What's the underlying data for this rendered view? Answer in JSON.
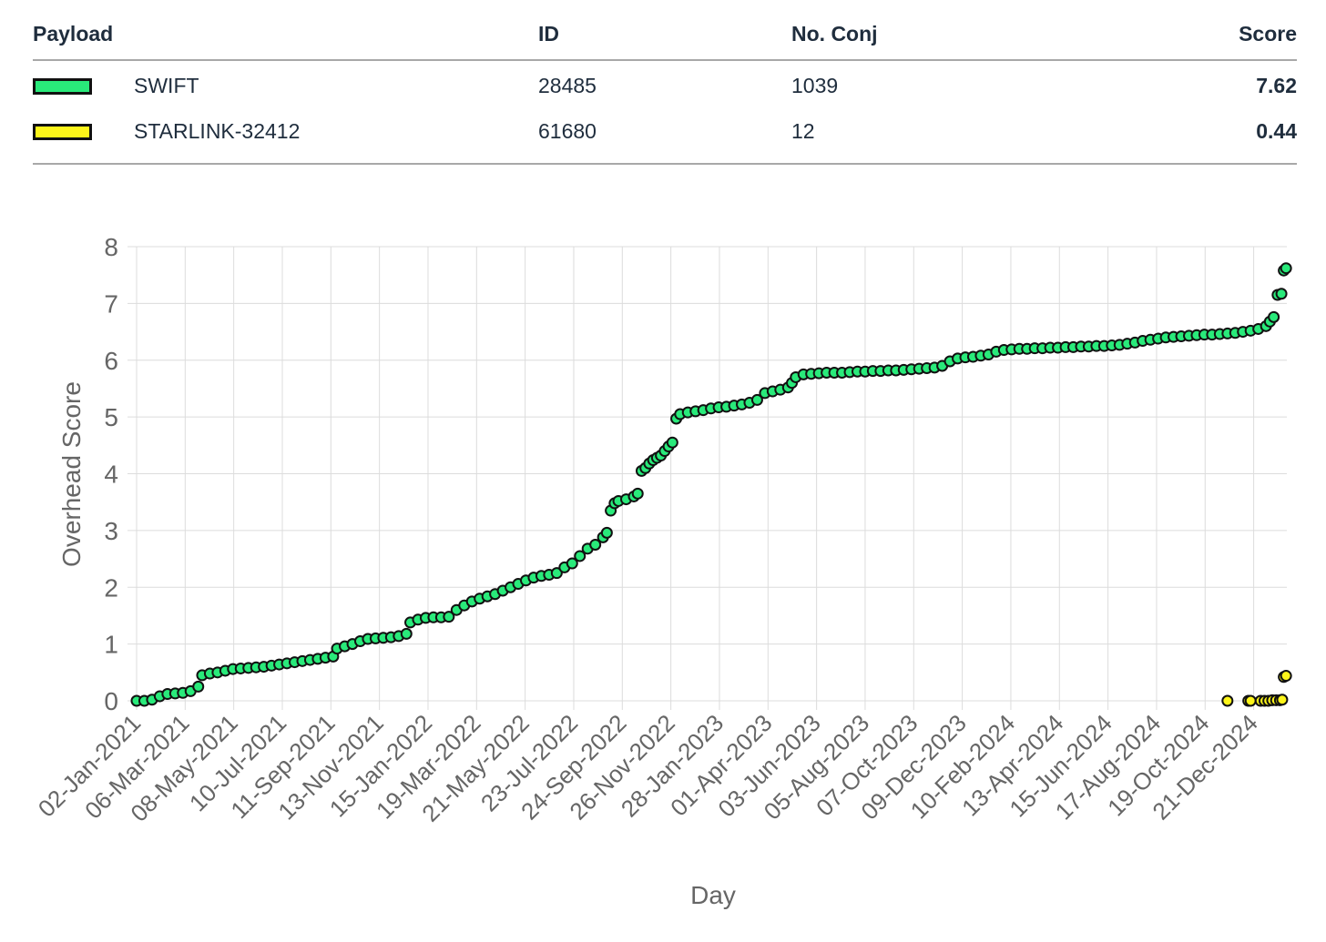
{
  "table": {
    "headers": [
      "Payload",
      "ID",
      "No. Conj",
      "Score"
    ],
    "rows": [
      {
        "name": "SWIFT",
        "id": "28485",
        "conj": "1039",
        "score": "7.62",
        "color": "#29ea7a"
      },
      {
        "name": "STARLINK-32412",
        "id": "61680",
        "conj": "12",
        "score": "0.44",
        "color": "#fdf51a"
      }
    ]
  },
  "chart_data": {
    "type": "scatter",
    "xlabel": "Day",
    "ylabel": "Overhead Score",
    "ylim": [
      0,
      8
    ],
    "yticks": [
      0,
      1,
      2,
      3,
      4,
      5,
      6,
      7,
      8
    ],
    "xlim": [
      "2021-01-02",
      "2025-02-02"
    ],
    "xticks": [
      "02-Jan-2021",
      "06-Mar-2021",
      "08-May-2021",
      "10-Jul-2021",
      "11-Sep-2021",
      "13-Nov-2021",
      "15-Jan-2022",
      "19-Mar-2022",
      "21-May-2022",
      "23-Jul-2022",
      "24-Sep-2022",
      "26-Nov-2022",
      "28-Jan-2023",
      "01-Apr-2023",
      "03-Jun-2023",
      "05-Aug-2023",
      "07-Oct-2023",
      "09-Dec-2023",
      "10-Feb-2024",
      "13-Apr-2024",
      "15-Jun-2024",
      "17-Aug-2024",
      "19-Oct-2024",
      "21-Dec-2024"
    ],
    "grid": true,
    "series": [
      {
        "name": "SWIFT",
        "color": "#29ea7a",
        "points": [
          [
            "2021-01-02",
            0.0
          ],
          [
            "2021-01-12",
            0.0
          ],
          [
            "2021-01-22",
            0.02
          ],
          [
            "2021-02-01",
            0.08
          ],
          [
            "2021-02-11",
            0.12
          ],
          [
            "2021-02-21",
            0.13
          ],
          [
            "2021-03-03",
            0.14
          ],
          [
            "2021-03-13",
            0.17
          ],
          [
            "2021-03-23",
            0.25
          ],
          [
            "2021-03-28",
            0.45
          ],
          [
            "2021-04-07",
            0.48
          ],
          [
            "2021-04-17",
            0.5
          ],
          [
            "2021-04-27",
            0.53
          ],
          [
            "2021-05-07",
            0.56
          ],
          [
            "2021-05-17",
            0.57
          ],
          [
            "2021-05-27",
            0.58
          ],
          [
            "2021-06-06",
            0.59
          ],
          [
            "2021-06-16",
            0.6
          ],
          [
            "2021-06-26",
            0.62
          ],
          [
            "2021-07-06",
            0.64
          ],
          [
            "2021-07-16",
            0.66
          ],
          [
            "2021-07-26",
            0.68
          ],
          [
            "2021-08-05",
            0.7
          ],
          [
            "2021-08-15",
            0.72
          ],
          [
            "2021-08-25",
            0.74
          ],
          [
            "2021-09-04",
            0.76
          ],
          [
            "2021-09-14",
            0.78
          ],
          [
            "2021-09-19",
            0.92
          ],
          [
            "2021-09-29",
            0.96
          ],
          [
            "2021-10-09",
            1.0
          ],
          [
            "2021-10-19",
            1.05
          ],
          [
            "2021-10-29",
            1.09
          ],
          [
            "2021-11-08",
            1.1
          ],
          [
            "2021-11-18",
            1.11
          ],
          [
            "2021-11-28",
            1.12
          ],
          [
            "2021-12-08",
            1.14
          ],
          [
            "2021-12-18",
            1.18
          ],
          [
            "2021-12-23",
            1.38
          ],
          [
            "2022-01-02",
            1.43
          ],
          [
            "2022-01-12",
            1.46
          ],
          [
            "2022-01-22",
            1.47
          ],
          [
            "2022-02-01",
            1.47
          ],
          [
            "2022-02-11",
            1.48
          ],
          [
            "2022-02-21",
            1.6
          ],
          [
            "2022-03-03",
            1.68
          ],
          [
            "2022-03-13",
            1.75
          ],
          [
            "2022-03-23",
            1.8
          ],
          [
            "2022-04-02",
            1.84
          ],
          [
            "2022-04-12",
            1.88
          ],
          [
            "2022-04-22",
            1.94
          ],
          [
            "2022-05-02",
            2.0
          ],
          [
            "2022-05-12",
            2.06
          ],
          [
            "2022-05-22",
            2.12
          ],
          [
            "2022-06-01",
            2.17
          ],
          [
            "2022-06-11",
            2.2
          ],
          [
            "2022-06-21",
            2.22
          ],
          [
            "2022-07-01",
            2.25
          ],
          [
            "2022-07-11",
            2.35
          ],
          [
            "2022-07-21",
            2.42
          ],
          [
            "2022-07-31",
            2.55
          ],
          [
            "2022-08-10",
            2.68
          ],
          [
            "2022-08-20",
            2.75
          ],
          [
            "2022-08-30",
            2.88
          ],
          [
            "2022-09-04",
            2.96
          ],
          [
            "2022-09-09",
            3.35
          ],
          [
            "2022-09-14",
            3.48
          ],
          [
            "2022-09-19",
            3.52
          ],
          [
            "2022-09-29",
            3.55
          ],
          [
            "2022-10-09",
            3.6
          ],
          [
            "2022-10-14",
            3.65
          ],
          [
            "2022-10-19",
            4.05
          ],
          [
            "2022-10-24",
            4.1
          ],
          [
            "2022-10-29",
            4.18
          ],
          [
            "2022-11-03",
            4.24
          ],
          [
            "2022-11-08",
            4.28
          ],
          [
            "2022-11-13",
            4.32
          ],
          [
            "2022-11-18",
            4.4
          ],
          [
            "2022-11-23",
            4.48
          ],
          [
            "2022-11-28",
            4.55
          ],
          [
            "2022-12-03",
            4.97
          ],
          [
            "2022-12-08",
            5.05
          ],
          [
            "2022-12-18",
            5.08
          ],
          [
            "2022-12-28",
            5.1
          ],
          [
            "2023-01-07",
            5.12
          ],
          [
            "2023-01-17",
            5.15
          ],
          [
            "2023-01-27",
            5.17
          ],
          [
            "2023-02-06",
            5.18
          ],
          [
            "2023-02-16",
            5.2
          ],
          [
            "2023-02-26",
            5.22
          ],
          [
            "2023-03-08",
            5.25
          ],
          [
            "2023-03-18",
            5.3
          ],
          [
            "2023-03-28",
            5.42
          ],
          [
            "2023-04-07",
            5.45
          ],
          [
            "2023-04-17",
            5.48
          ],
          [
            "2023-04-27",
            5.52
          ],
          [
            "2023-05-02",
            5.6
          ],
          [
            "2023-05-07",
            5.7
          ],
          [
            "2023-05-17",
            5.75
          ],
          [
            "2023-05-27",
            5.76
          ],
          [
            "2023-06-06",
            5.77
          ],
          [
            "2023-06-16",
            5.78
          ],
          [
            "2023-06-26",
            5.78
          ],
          [
            "2023-07-06",
            5.78
          ],
          [
            "2023-07-16",
            5.79
          ],
          [
            "2023-07-26",
            5.8
          ],
          [
            "2023-08-05",
            5.8
          ],
          [
            "2023-08-15",
            5.81
          ],
          [
            "2023-08-25",
            5.81
          ],
          [
            "2023-09-04",
            5.82
          ],
          [
            "2023-09-14",
            5.82
          ],
          [
            "2023-09-24",
            5.83
          ],
          [
            "2023-10-04",
            5.84
          ],
          [
            "2023-10-14",
            5.85
          ],
          [
            "2023-10-24",
            5.86
          ],
          [
            "2023-11-03",
            5.87
          ],
          [
            "2023-11-13",
            5.9
          ],
          [
            "2023-11-23",
            5.98
          ],
          [
            "2023-12-03",
            6.03
          ],
          [
            "2023-12-13",
            6.05
          ],
          [
            "2023-12-23",
            6.06
          ],
          [
            "2024-01-02",
            6.08
          ],
          [
            "2024-01-12",
            6.1
          ],
          [
            "2024-01-22",
            6.15
          ],
          [
            "2024-02-01",
            6.18
          ],
          [
            "2024-02-11",
            6.19
          ],
          [
            "2024-02-21",
            6.2
          ],
          [
            "2024-03-02",
            6.2
          ],
          [
            "2024-03-12",
            6.21
          ],
          [
            "2024-03-22",
            6.21
          ],
          [
            "2024-04-01",
            6.22
          ],
          [
            "2024-04-11",
            6.22
          ],
          [
            "2024-04-21",
            6.23
          ],
          [
            "2024-05-01",
            6.23
          ],
          [
            "2024-05-11",
            6.24
          ],
          [
            "2024-05-21",
            6.24
          ],
          [
            "2024-05-31",
            6.25
          ],
          [
            "2024-06-10",
            6.25
          ],
          [
            "2024-06-20",
            6.26
          ],
          [
            "2024-06-30",
            6.27
          ],
          [
            "2024-07-10",
            6.29
          ],
          [
            "2024-07-20",
            6.31
          ],
          [
            "2024-07-30",
            6.34
          ],
          [
            "2024-08-09",
            6.36
          ],
          [
            "2024-08-19",
            6.38
          ],
          [
            "2024-08-29",
            6.4
          ],
          [
            "2024-09-08",
            6.41
          ],
          [
            "2024-09-18",
            6.42
          ],
          [
            "2024-09-28",
            6.43
          ],
          [
            "2024-10-08",
            6.44
          ],
          [
            "2024-10-18",
            6.45
          ],
          [
            "2024-10-28",
            6.45
          ],
          [
            "2024-11-07",
            6.46
          ],
          [
            "2024-11-17",
            6.47
          ],
          [
            "2024-11-27",
            6.48
          ],
          [
            "2024-12-07",
            6.5
          ],
          [
            "2024-12-17",
            6.52
          ],
          [
            "2024-12-27",
            6.55
          ],
          [
            "2025-01-06",
            6.6
          ],
          [
            "2025-01-11",
            6.68
          ],
          [
            "2025-01-16",
            6.76
          ],
          [
            "2025-01-21",
            7.15
          ],
          [
            "2025-01-26",
            7.17
          ],
          [
            "2025-01-29",
            7.58
          ],
          [
            "2025-02-01",
            7.62
          ]
        ]
      },
      {
        "name": "STARLINK-32412",
        "color": "#fdf51a",
        "points": [
          [
            "2024-11-17",
            0.0
          ],
          [
            "2024-12-14",
            0.0
          ],
          [
            "2024-12-17",
            0.0
          ],
          [
            "2024-12-30",
            0.0
          ],
          [
            "2025-01-04",
            0.0
          ],
          [
            "2025-01-09",
            0.0
          ],
          [
            "2025-01-14",
            0.01
          ],
          [
            "2025-01-19",
            0.01
          ],
          [
            "2025-01-24",
            0.01
          ],
          [
            "2025-01-27",
            0.02
          ],
          [
            "2025-01-29",
            0.42
          ],
          [
            "2025-02-01",
            0.44
          ]
        ]
      }
    ]
  }
}
